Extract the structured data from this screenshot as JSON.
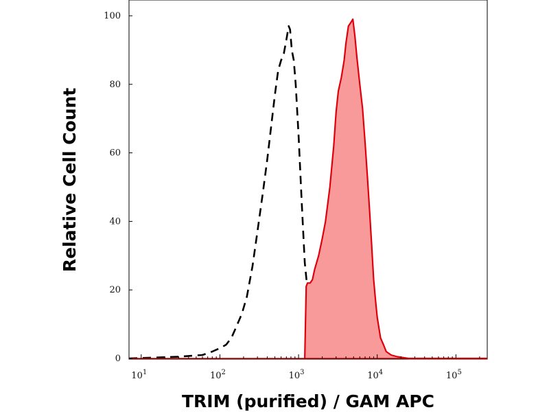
{
  "chart_data": {
    "type": "area",
    "xlabel": "TRIM (purified) / GAM APC",
    "ylabel": "Relative Cell Count",
    "x_scale": "log",
    "xlim": [
      7,
      250000
    ],
    "ylim": [
      0,
      100
    ],
    "x_ticks": [
      {
        "base": "10",
        "exp": "1",
        "value": 10
      },
      {
        "base": "10",
        "exp": "2",
        "value": 100
      },
      {
        "base": "10",
        "exp": "3",
        "value": 1000
      },
      {
        "base": "10",
        "exp": "4",
        "value": 10000
      },
      {
        "base": "10",
        "exp": "5",
        "value": 100000
      }
    ],
    "y_ticks": [
      {
        "label": "0",
        "value": 0
      },
      {
        "label": "20",
        "value": 20
      },
      {
        "label": "40",
        "value": 40
      },
      {
        "label": "60",
        "value": 60
      },
      {
        "label": "80",
        "value": 80
      },
      {
        "label": "100",
        "value": 100
      }
    ],
    "grid": false,
    "legend": "none",
    "series": [
      {
        "style": "dashed",
        "color": "#000000",
        "x": [
          7,
          30,
          60,
          80,
          100,
          120,
          140,
          160,
          190,
          220,
          260,
          300,
          350,
          400,
          450,
          500,
          550,
          600,
          650,
          700,
          750,
          780,
          820,
          870,
          920,
          1000,
          1100,
          1200,
          1300,
          1400,
          1500,
          1700,
          2000,
          2300,
          2600,
          3000
        ],
        "y": [
          0,
          0.5,
          1,
          2,
          3,
          4,
          6,
          9,
          13,
          18,
          27,
          37,
          48,
          58,
          68,
          77,
          84,
          87,
          89,
          93,
          97,
          96,
          90,
          87,
          80,
          65,
          45,
          28,
          20,
          15,
          12,
          8,
          5,
          2,
          0.5,
          0
        ]
      },
      {
        "style": "filled",
        "color": "#e0000b",
        "fill": "#f99a9a",
        "x": [
          1200,
          1250,
          1300,
          1400,
          1500,
          1600,
          1800,
          2000,
          2200,
          2500,
          2800,
          3000,
          3200,
          3500,
          3800,
          4000,
          4300,
          4600,
          4900,
          5200,
          5500,
          6000,
          6500,
          7000,
          7500,
          8000,
          8500,
          9000,
          9500,
          10000,
          11000,
          12000,
          13000,
          15000,
          18000,
          25000,
          250000
        ],
        "y": [
          0,
          21,
          22,
          22,
          23,
          26,
          30,
          35,
          40,
          50,
          62,
          72,
          78,
          82,
          87,
          92,
          97,
          98,
          99,
          94,
          88,
          80,
          73,
          63,
          53,
          43,
          33,
          23,
          17,
          12,
          6,
          4,
          2,
          1,
          0.5,
          0,
          0
        ]
      }
    ]
  }
}
